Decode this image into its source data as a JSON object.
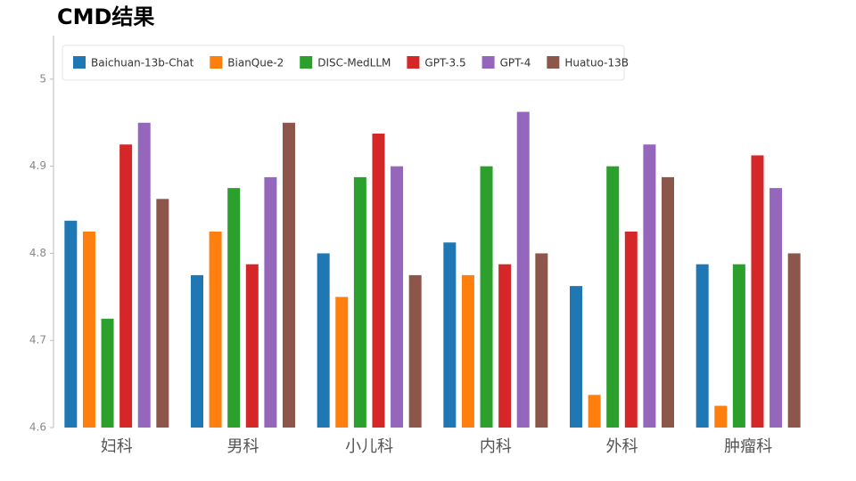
{
  "chart_data": {
    "type": "bar",
    "title": "CMD结果",
    "categories": [
      "妇科",
      "男科",
      "小儿科",
      "内科",
      "外科",
      "肿瘤科"
    ],
    "series": [
      {
        "name": "Baichuan-13b-Chat",
        "color": "#1f77b4",
        "values": [
          4.8375,
          4.775,
          4.8,
          4.8125,
          4.7625,
          4.7875
        ]
      },
      {
        "name": "BianQue-2",
        "color": "#ff7f0e",
        "values": [
          4.825,
          4.825,
          4.75,
          4.775,
          4.6375,
          4.625
        ]
      },
      {
        "name": "DISC-MedLLM",
        "color": "#2ca02c",
        "values": [
          4.725,
          4.875,
          4.8875,
          4.9,
          4.9,
          4.7875
        ]
      },
      {
        "name": "GPT-3.5",
        "color": "#d62728",
        "values": [
          4.925,
          4.7875,
          4.9375,
          4.7875,
          4.825,
          4.9125
        ]
      },
      {
        "name": "GPT-4",
        "color": "#9467bd",
        "values": [
          4.95,
          4.8875,
          4.9,
          4.9625,
          4.925,
          4.875
        ]
      },
      {
        "name": "Huatuo-13B",
        "color": "#8c564b",
        "values": [
          4.8625,
          4.95,
          4.775,
          4.8,
          4.8875,
          4.8
        ]
      }
    ],
    "ylim": [
      4.6,
      5.05
    ],
    "yticks": [
      4.6,
      4.7,
      4.8,
      4.9,
      5
    ],
    "grid": false,
    "legend": "top"
  }
}
